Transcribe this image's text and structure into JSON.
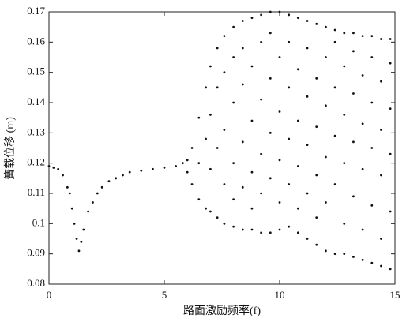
{
  "chart_data": {
    "type": "scatter",
    "xlabel": "路面激励频率(f)",
    "ylabel": "簧载位移 (m)",
    "color": "#111111",
    "xlim": [
      0,
      15
    ],
    "xticks": [
      0,
      5,
      10,
      15
    ],
    "ylim": [
      0.08,
      0.17
    ],
    "yticks": [
      0.08,
      0.09,
      0.1,
      0.11,
      0.12,
      0.13,
      0.14,
      0.15,
      0.16,
      0.17
    ],
    "x": [
      0,
      0.2,
      0.4,
      0.6,
      0.8,
      0.9,
      1.0,
      1.1,
      1.2,
      1.3,
      1.4,
      1.5,
      1.7,
      1.9,
      2.1,
      2.3,
      2.6,
      2.9,
      3.2,
      3.5,
      4.0,
      4.5,
      5.0,
      5.5,
      5.8,
      6.0,
      6.0,
      6.2,
      6.2,
      6.5,
      6.5,
      6.5,
      6.8,
      6.8,
      6.8,
      7.0,
      7.0,
      7.0,
      7.0,
      7.3,
      7.3,
      7.3,
      7.3,
      7.6,
      7.6,
      7.6,
      7.6,
      7.6,
      8.0,
      8.0,
      8.0,
      8.0,
      8.0,
      8.0,
      8.4,
      8.4,
      8.4,
      8.4,
      8.4,
      8.4,
      8.8,
      8.8,
      8.8,
      8.8,
      8.8,
      8.8,
      9.2,
      9.2,
      9.2,
      9.2,
      9.2,
      9.2,
      9.6,
      9.6,
      9.6,
      9.6,
      9.6,
      9.6,
      10.0,
      10.0,
      10.0,
      10.0,
      10.0,
      10.0,
      10.4,
      10.4,
      10.4,
      10.4,
      10.4,
      10.4,
      10.8,
      10.8,
      10.8,
      10.8,
      10.8,
      10.8,
      11.2,
      11.2,
      11.2,
      11.2,
      11.2,
      11.2,
      11.6,
      11.6,
      11.6,
      11.6,
      11.6,
      11.6,
      12.0,
      12.0,
      12.0,
      12.0,
      12.0,
      12.0,
      12.4,
      12.4,
      12.4,
      12.4,
      12.4,
      12.4,
      12.8,
      12.8,
      12.8,
      12.8,
      12.8,
      12.8,
      13.2,
      13.2,
      13.2,
      13.2,
      13.2,
      13.2,
      13.6,
      13.6,
      13.6,
      13.6,
      13.6,
      13.6,
      14.0,
      14.0,
      14.0,
      14.0,
      14.0,
      14.0,
      14.4,
      14.4,
      14.4,
      14.4,
      14.4,
      14.4,
      14.8,
      14.8,
      14.8,
      14.8,
      14.8,
      14.8
    ],
    "y": [
      0.119,
      0.1185,
      0.118,
      0.116,
      0.112,
      0.11,
      0.105,
      0.1,
      0.095,
      0.091,
      0.094,
      0.098,
      0.104,
      0.107,
      0.11,
      0.112,
      0.114,
      0.115,
      0.116,
      0.117,
      0.1175,
      0.118,
      0.1185,
      0.119,
      0.12,
      0.121,
      0.117,
      0.125,
      0.113,
      0.135,
      0.108,
      0.12,
      0.145,
      0.105,
      0.128,
      0.152,
      0.104,
      0.118,
      0.136,
      0.158,
      0.102,
      0.125,
      0.145,
      0.162,
      0.1,
      0.113,
      0.131,
      0.15,
      0.165,
      0.099,
      0.12,
      0.14,
      0.155,
      0.108,
      0.167,
      0.098,
      0.127,
      0.146,
      0.112,
      0.158,
      0.168,
      0.098,
      0.134,
      0.117,
      0.152,
      0.105,
      0.169,
      0.097,
      0.123,
      0.141,
      0.16,
      0.11,
      0.17,
      0.097,
      0.13,
      0.148,
      0.115,
      0.163,
      0.17,
      0.098,
      0.121,
      0.137,
      0.155,
      0.107,
      0.169,
      0.099,
      0.128,
      0.145,
      0.113,
      0.16,
      0.168,
      0.097,
      0.119,
      0.134,
      0.151,
      0.105,
      0.167,
      0.095,
      0.126,
      0.142,
      0.11,
      0.158,
      0.166,
      0.093,
      0.132,
      0.148,
      0.116,
      0.102,
      0.165,
      0.091,
      0.122,
      0.139,
      0.155,
      0.107,
      0.164,
      0.09,
      0.129,
      0.145,
      0.113,
      0.16,
      0.163,
      0.09,
      0.12,
      0.136,
      0.152,
      0.1,
      0.163,
      0.089,
      0.127,
      0.143,
      0.109,
      0.157,
      0.162,
      0.088,
      0.118,
      0.133,
      0.149,
      0.098,
      0.162,
      0.087,
      0.125,
      0.14,
      0.106,
      0.155,
      0.161,
      0.086,
      0.116,
      0.131,
      0.147,
      0.095,
      0.161,
      0.085,
      0.123,
      0.138,
      0.104,
      0.153
    ]
  }
}
